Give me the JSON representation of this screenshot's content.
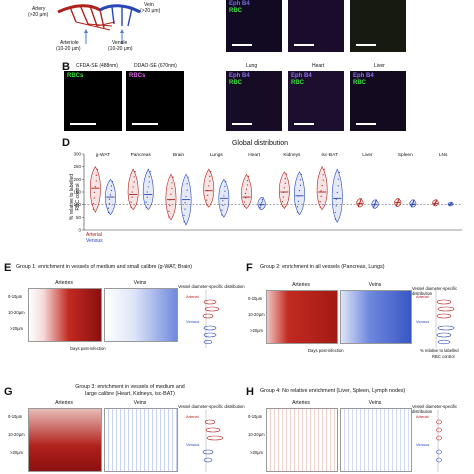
{
  "panel_a": {
    "artery": "Artery",
    "artery_size": "(>20 μm)",
    "vein": "Vein",
    "vein_size": "(>20 μm)",
    "arteriole": "Arteriole",
    "arteriole_size": "(10-20 μm)",
    "venule": "Venule",
    "venule_size": "(10-20 μm)",
    "top_rbc": "RBC",
    "top_eph": "Eph B4"
  },
  "panel_b": {
    "letter": "B",
    "cfda_label": "CFDA-SE (488nm)",
    "ddao_label": "DDAO-SE (670nm)",
    "rbcs_green": "RBCs",
    "rbcs_purple": "RBCs",
    "lung": "Lung",
    "heart": "Heart",
    "liver": "Liver",
    "ephb4": "Eph B4",
    "rbc": "RBC"
  },
  "panel_d": {
    "letter": "D",
    "title": "Global distribution",
    "ylabel_line1": "% relative to labelled",
    "ylabel_line2": "RBC control",
    "legend_arterial": "Arterial",
    "legend_venous": "Venous",
    "tissues": [
      "g-WAT",
      "Pancreas",
      "Brain",
      "Lungs",
      "Heart",
      "Kidneys",
      "isc-BAT",
      "Liver",
      "Spleen",
      "LNs"
    ]
  },
  "chart_data": {
    "type": "violin",
    "title": "Global distribution",
    "ylabel": "% relative to labelled RBC control",
    "ylim": [
      0,
      300
    ],
    "yticks": [
      0,
      50,
      100,
      150,
      200,
      250,
      300
    ],
    "reference_line": 100,
    "categories": [
      "g-WAT",
      "Pancreas",
      "Brain",
      "Lungs",
      "Heart",
      "Kidneys",
      "isc-BAT",
      "Liver",
      "Spleen",
      "LNs"
    ],
    "series": [
      {
        "name": "Arterial",
        "medians": [
          165,
          140,
          120,
          155,
          130,
          150,
          150,
          105,
          108,
          105
        ],
        "mins": [
          70,
          80,
          40,
          90,
          85,
          85,
          80,
          90,
          92,
          95
        ],
        "maxs": [
          250,
          240,
          220,
          240,
          220,
          230,
          250,
          125,
          125,
          120
        ]
      },
      {
        "name": "Venous",
        "medians": [
          130,
          140,
          120,
          125,
          100,
          135,
          125,
          100,
          102,
          102
        ],
        "mins": [
          60,
          80,
          20,
          50,
          80,
          60,
          30,
          85,
          90,
          95
        ],
        "maxs": [
          200,
          240,
          220,
          200,
          130,
          230,
          240,
          120,
          120,
          110
        ]
      }
    ],
    "colors": {
      "arterial": "#b0211c",
      "venous": "#2946b8"
    }
  },
  "panel_e": {
    "letter": "E",
    "title": "Group 1: enrichment in vessels of medium and small calibre (g-WAT, Brain)",
    "arteries": "Arteries",
    "veins": "Veins",
    "dist_title": "Vessel diameter-specific distribution",
    "rows": [
      "0-10μm",
      "10-20μm",
      ">20μm"
    ],
    "xlabel": "Days post-infection",
    "ticks": [
      "0",
      "50",
      "100",
      "150",
      "200"
    ],
    "arterial": "Arterial",
    "venous": "Venous"
  },
  "panel_f": {
    "letter": "F",
    "title": "Group 2: enrichment in all vessels (Pancreas, Lungs)",
    "arteries": "Arteries",
    "veins": "Veins",
    "dist_title": "Vessel diameter-specific distribution",
    "rows": [
      "0-10μm",
      "10-20μm",
      ">20μm"
    ],
    "xlabel": "Days post-infection",
    "ticks": [
      "0",
      "50",
      "100",
      "150",
      "200"
    ],
    "arterial": "Arterial",
    "venous": "Venous",
    "pct_line1": "% relative to labelled",
    "pct_line2": "RBC control",
    "pct_ticks": [
      "0",
      "50",
      "100",
      "150",
      "200",
      "250",
      "300"
    ]
  },
  "panel_g": {
    "letter": "G",
    "title_line1": "Group 3: enrichment in vessels of medium and",
    "title_line2": "large calibre (Heart, Kidneys, isc-BAT)",
    "arteries": "Arteries",
    "veins": "Veins",
    "dist_title": "Vessel diameter-specific distribution",
    "rows": [
      "0-10μm",
      "10-20μm",
      ">20μm"
    ],
    "arterial": "Arterial",
    "venous": "Venous"
  },
  "panel_h": {
    "letter": "H",
    "title": "Group 4: No relative enrichment (Liver, Spleen, Lymph nodes)",
    "arteries": "Arteries",
    "veins": "Veins",
    "dist_title": "Vessel diameter-specific distribution",
    "rows": [
      "0-10μm",
      "10-20μm",
      ">20μm"
    ],
    "arterial": "Arterial",
    "venous": "Venous"
  }
}
